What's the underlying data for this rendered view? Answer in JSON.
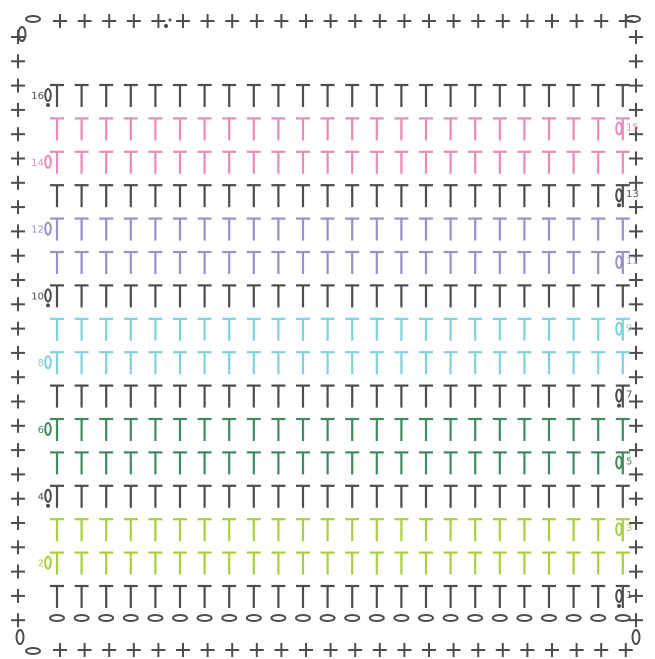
{
  "pattern": {
    "stitch_count": 24,
    "colors": {
      "dark": "#4d4d4d",
      "pink": "#e98bb8",
      "purple": "#9b8fc9",
      "cyan": "#7fd3d8",
      "green": "#3f8a5e",
      "lime": "#a9cf3d"
    },
    "stitch_symbols": {
      "double_crochet": "T",
      "chain": "0",
      "single_crochet": "+",
      "slip_stitch": "•"
    },
    "rows": [
      {
        "label": "1",
        "color": "dark",
        "side": "right"
      },
      {
        "label": "2",
        "color": "lime",
        "side": "left"
      },
      {
        "label": "3",
        "color": "lime",
        "side": "right"
      },
      {
        "label": "4",
        "color": "dark",
        "side": "left"
      },
      {
        "label": "5",
        "color": "green",
        "side": "right"
      },
      {
        "label": "6",
        "color": "green",
        "side": "left"
      },
      {
        "label": "7",
        "color": "dark",
        "side": "right"
      },
      {
        "label": "8",
        "color": "cyan",
        "side": "left"
      },
      {
        "label": "9",
        "color": "cyan",
        "side": "right"
      },
      {
        "label": "10",
        "color": "dark",
        "side": "left"
      },
      {
        "label": "11",
        "color": "purple",
        "side": "right"
      },
      {
        "label": "12",
        "color": "purple",
        "side": "left"
      },
      {
        "label": "13",
        "color": "dark",
        "side": "right"
      },
      {
        "label": "14",
        "color": "pink",
        "side": "left"
      },
      {
        "label": "15",
        "color": "pink",
        "side": "right"
      },
      {
        "label": "16",
        "color": "dark",
        "side": "left"
      }
    ],
    "border": {
      "color": "dark",
      "symbol": "+",
      "corner_symbol": "0"
    }
  }
}
